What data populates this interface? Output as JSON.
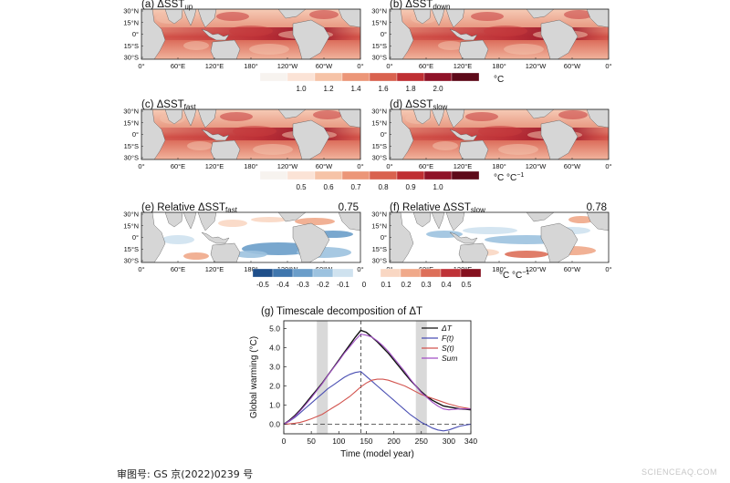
{
  "maps": {
    "lat_labels": [
      "30°N",
      "15°N",
      "0°",
      "15°S",
      "30°S"
    ],
    "lon_labels": [
      "0°",
      "60°E",
      "120°E",
      "180°",
      "120°W",
      "60°W",
      "0°"
    ],
    "panels": [
      {
        "title": "(a) ΔSST",
        "sub": "up",
        "kind": "abs"
      },
      {
        "title": "(b) ΔSST",
        "sub": "down",
        "kind": "abs"
      },
      {
        "title": "(c) ΔSST",
        "sub": "fast",
        "kind": "abs"
      },
      {
        "title": "(d) ΔSST",
        "sub": "slow",
        "kind": "abs"
      },
      {
        "title": "(e) Relative ΔSST",
        "sub": "fast",
        "kind": "rel",
        "value": "0.75"
      },
      {
        "title": "(f) Relative ΔSST",
        "sub": "slow",
        "kind": "rel",
        "value": "0.78"
      }
    ]
  },
  "colorbars": [
    {
      "labels": [
        "1.0",
        "1.2",
        "1.4",
        "1.6",
        "1.8",
        "2.0"
      ],
      "unit": "°C",
      "colors": [
        "#f7f3ef",
        "#fbe3d6",
        "#f6c3a7",
        "#ec9678",
        "#d9624f",
        "#bf2f33",
        "#8f1328",
        "#5e0a1a"
      ]
    },
    {
      "labels": [
        "0.5",
        "0.6",
        "0.7",
        "0.8",
        "0.9",
        "1.0"
      ],
      "unit": "°C °C",
      "unit_sup": "−1",
      "colors": [
        "#f7f3ef",
        "#fbe3d6",
        "#f6c3a7",
        "#ec9678",
        "#d9624f",
        "#bf2f33",
        "#8f1328",
        "#5e0a1a"
      ]
    },
    {
      "labels": [
        "-0.5",
        "-0.4",
        "-0.3",
        "-0.2",
        "-0.1",
        "0",
        "0.1",
        "0.2",
        "0.3",
        "0.4",
        "0.5"
      ],
      "unit": "°C °C",
      "unit_sup": "−1",
      "colors": [
        "#1f4f8a",
        "#3f76ad",
        "#6a9dc9",
        "#9cc2df",
        "#cfe2ef",
        "#f7f3ef",
        "#f9d7c3",
        "#f0a98a",
        "#dd6f59",
        "#bf3338",
        "#85101f"
      ]
    }
  ],
  "colors": {
    "land": "#d6d6d6",
    "delta_t": "#111111",
    "fast": "#4a4fb3",
    "slow": "#d2544f",
    "sum": "#a14fc4",
    "shade": "#d9d9d9"
  },
  "chart_data": {
    "type": "line",
    "title": "(g) Timescale decomposition of ΔT",
    "xlabel": "Time (model year)",
    "ylabel": "Global warming (°C)",
    "xlim": [
      0,
      340
    ],
    "ylim": [
      -0.5,
      5.4
    ],
    "xticks": [
      0,
      50,
      100,
      150,
      200,
      250,
      300,
      340
    ],
    "yticks": [
      "0.0",
      "1.0",
      "2.0",
      "3.0",
      "4.0",
      "5.0"
    ],
    "shaded_ranges": [
      [
        60,
        80
      ],
      [
        240,
        260
      ]
    ],
    "vline": 140,
    "hline": 0,
    "legend": [
      "ΔT",
      "F(t)",
      "S(t)",
      "Sum"
    ],
    "legend_position": "top-right",
    "series": [
      {
        "name": "ΔT",
        "x": [
          0,
          10,
          20,
          30,
          40,
          50,
          60,
          70,
          80,
          90,
          100,
          110,
          120,
          130,
          140,
          150,
          160,
          170,
          180,
          190,
          200,
          210,
          220,
          230,
          240,
          250,
          260,
          270,
          280,
          290,
          300,
          310,
          320,
          330,
          340
        ],
        "y": [
          0.0,
          0.2,
          0.45,
          0.75,
          1.1,
          1.45,
          1.8,
          2.15,
          2.55,
          2.95,
          3.35,
          3.75,
          4.15,
          4.55,
          4.9,
          4.8,
          4.55,
          4.3,
          4.0,
          3.7,
          3.35,
          3.0,
          2.65,
          2.3,
          2.0,
          1.7,
          1.45,
          1.25,
          1.1,
          0.95,
          0.9,
          0.85,
          0.8,
          0.78,
          0.75
        ]
      },
      {
        "name": "F(t)",
        "x": [
          0,
          10,
          20,
          30,
          40,
          50,
          60,
          70,
          80,
          90,
          100,
          110,
          120,
          130,
          140,
          150,
          160,
          170,
          180,
          190,
          200,
          210,
          220,
          230,
          240,
          250,
          260,
          270,
          280,
          290,
          300,
          310,
          320,
          330,
          340
        ],
        "y": [
          0.0,
          0.15,
          0.35,
          0.6,
          0.85,
          1.1,
          1.35,
          1.6,
          1.85,
          2.05,
          2.25,
          2.45,
          2.6,
          2.7,
          2.75,
          2.5,
          2.25,
          2.0,
          1.75,
          1.5,
          1.25,
          1.0,
          0.75,
          0.5,
          0.3,
          0.1,
          -0.05,
          -0.2,
          -0.3,
          -0.35,
          -0.3,
          -0.2,
          -0.1,
          -0.05,
          0.0
        ]
      },
      {
        "name": "S(t)",
        "x": [
          0,
          10,
          20,
          30,
          40,
          50,
          60,
          70,
          80,
          90,
          100,
          110,
          120,
          130,
          140,
          150,
          160,
          170,
          180,
          190,
          200,
          210,
          220,
          230,
          240,
          250,
          260,
          270,
          280,
          290,
          300,
          310,
          320,
          330,
          340
        ],
        "y": [
          0.0,
          0.02,
          0.05,
          0.1,
          0.18,
          0.28,
          0.4,
          0.52,
          0.7,
          0.88,
          1.05,
          1.25,
          1.45,
          1.7,
          1.95,
          2.15,
          2.3,
          2.35,
          2.35,
          2.3,
          2.2,
          2.1,
          2.0,
          1.85,
          1.7,
          1.55,
          1.45,
          1.35,
          1.25,
          1.15,
          1.05,
          0.98,
          0.9,
          0.85,
          0.8
        ]
      },
      {
        "name": "Sum",
        "x": [
          0,
          10,
          20,
          30,
          40,
          50,
          60,
          70,
          80,
          90,
          100,
          110,
          120,
          130,
          140,
          150,
          160,
          170,
          180,
          190,
          200,
          210,
          220,
          230,
          240,
          250,
          260,
          270,
          280,
          290,
          300,
          310,
          320,
          330,
          340
        ],
        "y": [
          0.0,
          0.17,
          0.4,
          0.7,
          1.03,
          1.38,
          1.75,
          2.12,
          2.55,
          2.93,
          3.3,
          3.7,
          4.05,
          4.4,
          4.7,
          4.65,
          4.55,
          4.35,
          4.1,
          3.8,
          3.45,
          3.1,
          2.75,
          2.35,
          2.0,
          1.65,
          1.4,
          1.15,
          0.95,
          0.8,
          0.75,
          0.78,
          0.8,
          0.8,
          0.8
        ]
      }
    ]
  },
  "footer": "审图号: GS 京(2022)0239 号",
  "watermark": "SCIENCEAQ.COM"
}
